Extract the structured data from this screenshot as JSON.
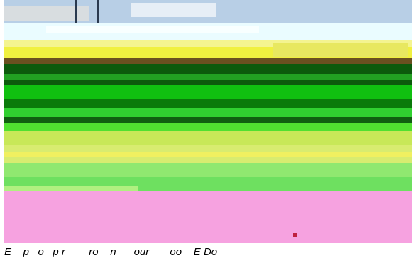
{
  "caption": "E    p   o   p r        ro    n      our       oo    E Do"
}
